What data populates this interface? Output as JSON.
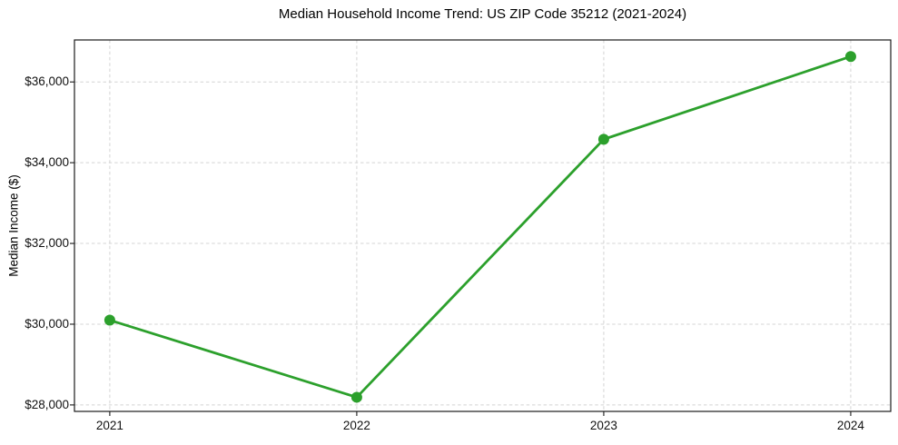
{
  "chart_data": {
    "type": "line",
    "title": "Median Household Income Trend: US ZIP Code 35212 (2021-2024)",
    "xlabel": "",
    "ylabel": "Median Income ($)",
    "x": [
      2021,
      2022,
      2023,
      2024
    ],
    "values": [
      30100,
      28190,
      34580,
      36630
    ],
    "xtick_labels": [
      "2021",
      "2022",
      "2023",
      "2024"
    ],
    "ytick_values": [
      28000,
      30000,
      32000,
      34000,
      36000
    ],
    "ytick_labels": [
      "$28,000",
      "$30,000",
      "$32,000",
      "$34,000",
      "$36,000"
    ],
    "xlim": [
      2020.857,
      2024.162
    ],
    "ylim": [
      27840,
      37040
    ],
    "grid": true,
    "grid_style": "dashed",
    "legend": "none",
    "colors": {
      "line": "#2ca02c",
      "marker": "#2ca02c",
      "grid": "#d4d4d4",
      "axis": "#1a1a1a",
      "tick_text": "#111111",
      "text": "#000000",
      "background": "#ffffff"
    }
  }
}
